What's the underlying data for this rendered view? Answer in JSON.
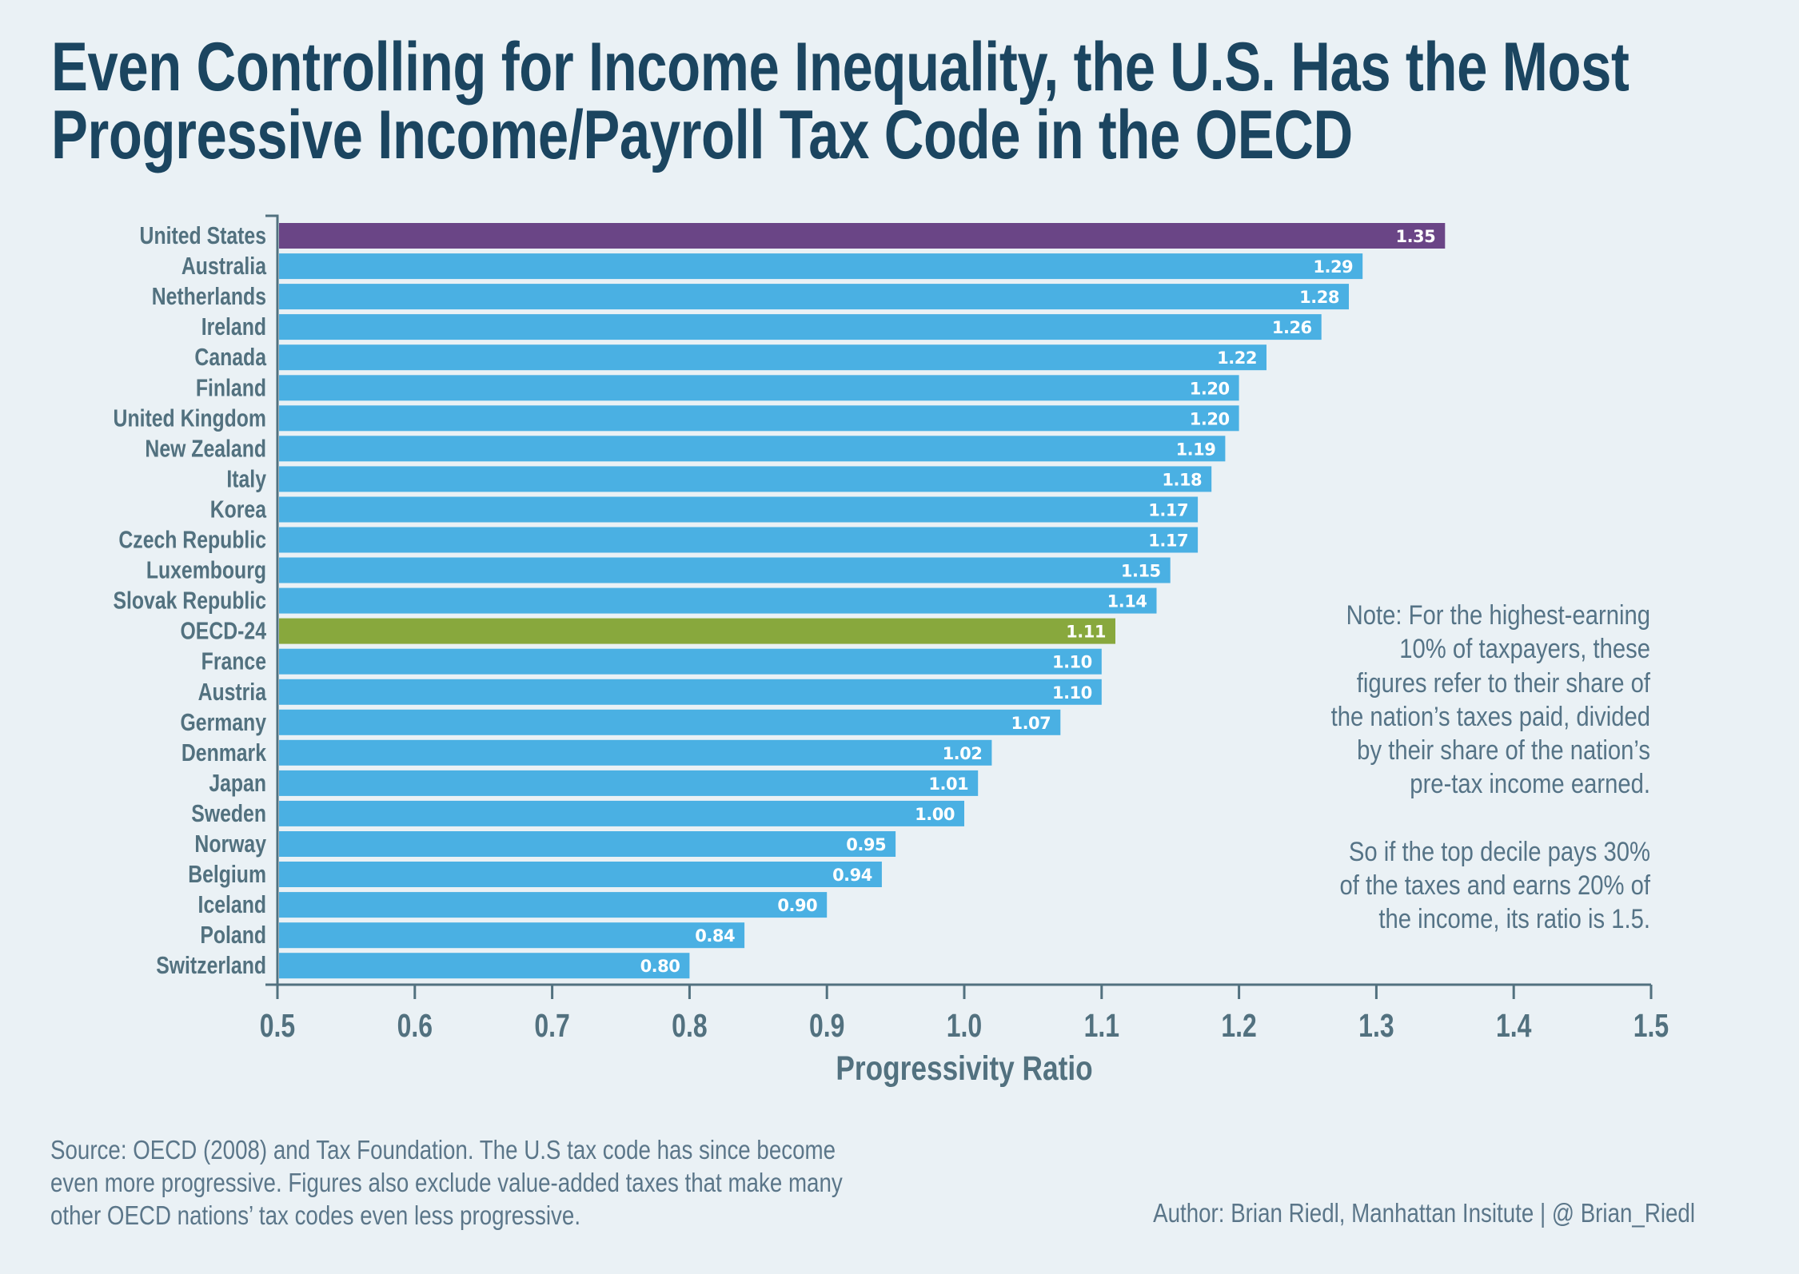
{
  "header": {
    "title_line1": "Even Controlling for Income Inequality, the U.S. Has the Most",
    "title_line2": "Progressive Income/Payroll Tax Code in the OECD"
  },
  "colors": {
    "background": "#eaf1f5",
    "title": "#1b4560",
    "bar_default": "#4ab0e3",
    "bar_united_states": "#6a4586",
    "bar_oecd_average": "#88a83d",
    "axis": "#52717f",
    "label_text": "#52717f",
    "value_label_text": "#ffffff"
  },
  "chart_data": {
    "type": "bar",
    "orientation": "horizontal",
    "title": "Even Controlling for Income Inequality, the U.S. Has the Most Progressive Income/Payroll Tax Code in the OECD",
    "xlabel": "Progressivity Ratio",
    "ylabel": "",
    "xlim": [
      0.5,
      1.5
    ],
    "xticks": [
      0.5,
      0.6,
      0.7,
      0.8,
      0.9,
      1.0,
      1.1,
      1.2,
      1.3,
      1.4,
      1.5
    ],
    "xtick_labels": [
      "0.5",
      "0.6",
      "0.7",
      "0.8",
      "0.9",
      "1.0",
      "1.1",
      "1.2",
      "1.3",
      "1.4",
      "1.5"
    ],
    "grid": false,
    "legend": "none",
    "categories": [
      "United States",
      "Australia",
      "Netherlands",
      "Ireland",
      "Canada",
      "Finland",
      "United Kingdom",
      "New Zealand",
      "Italy",
      "Korea",
      "Czech Republic",
      "Luxembourg",
      "Slovak Republic",
      "OECD-24",
      "France",
      "Austria",
      "Germany",
      "Denmark",
      "Japan",
      "Sweden",
      "Norway",
      "Belgium",
      "Iceland",
      "Poland",
      "Switzerland"
    ],
    "values": [
      1.35,
      1.29,
      1.28,
      1.26,
      1.22,
      1.2,
      1.2,
      1.19,
      1.18,
      1.17,
      1.17,
      1.15,
      1.14,
      1.11,
      1.1,
      1.1,
      1.07,
      1.02,
      1.01,
      1.0,
      0.95,
      0.94,
      0.9,
      0.84,
      0.8
    ],
    "value_labels": [
      "1.35",
      "1.29",
      "1.28",
      "1.26",
      "1.22",
      "1.20",
      "1.20",
      "1.19",
      "1.18",
      "1.17",
      "1.17",
      "1.15",
      "1.14",
      "1.11",
      "1.10",
      "1.10",
      "1.07",
      "1.02",
      "1.01",
      "1.00",
      "0.95",
      "0.94",
      "0.90",
      "0.84",
      "0.80"
    ],
    "highlights": {
      "United States": "#6a4586",
      "OECD-24": "#88a83d"
    }
  },
  "note": {
    "paragraph1": "Note: For the highest-earning 10% of taxpayers, these figures refer to their share of the nation’s taxes paid, divided by their share of the nation’s pre-tax income earned.",
    "paragraph1_lines": [
      "Note: For the highest-earning",
      "10% of taxpayers, these",
      "figures refer to their share of",
      "the nation’s taxes paid, divided",
      "by their share of the nation’s",
      "pre-tax income earned."
    ],
    "paragraph2_lines": [
      "So if the top decile pays 30%",
      "of the taxes and earns 20% of",
      "the income, its ratio is 1.5."
    ]
  },
  "footer": {
    "source_lines": [
      "Source: OECD (2008) and Tax Foundation. The U.S tax code has since become",
      "even more progressive. Figures also exclude value-added taxes that make many",
      "other OECD nations’ tax codes even less progressive."
    ],
    "author": "Author: Brian Riedl, Manhattan Insitute | @ Brian_Riedl"
  }
}
